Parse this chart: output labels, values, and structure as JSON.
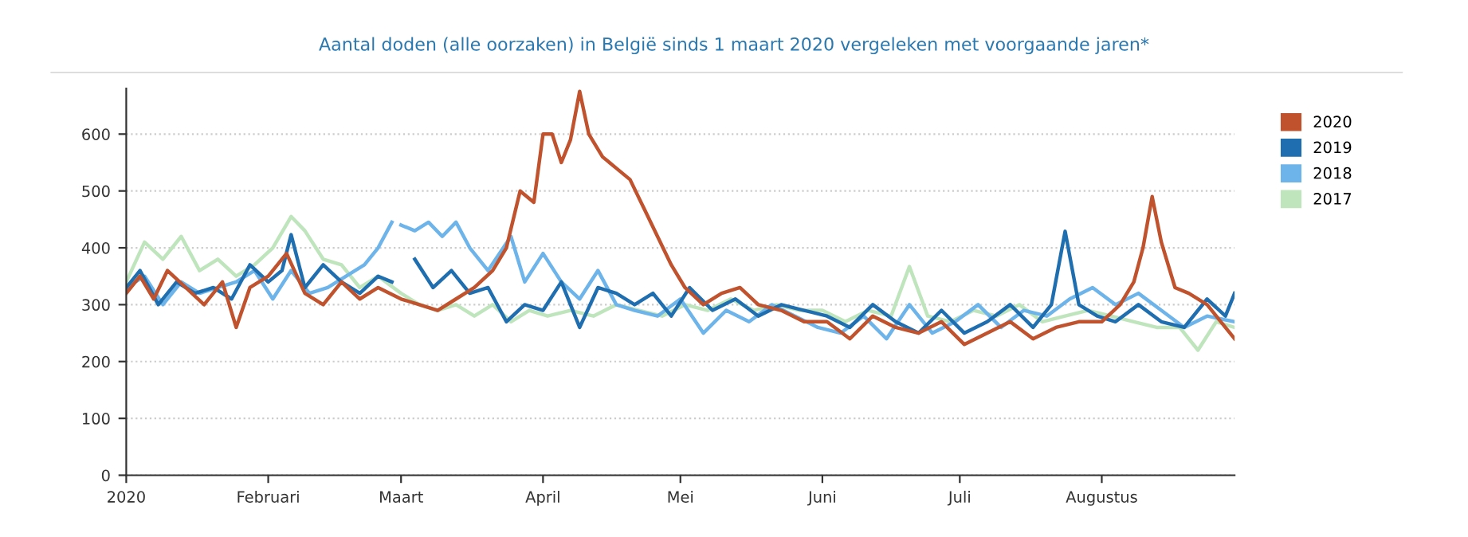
{
  "chart_data": {
    "type": "line",
    "title": "Aantal doden (alle oorzaken) in België sinds 1 maart 2020 vergeleken met voorgaande jaren*",
    "xlim": [
      "2020-01-01",
      "2020-08-30"
    ],
    "xticks": [
      {
        "value": "2020-01-01",
        "label": "2020"
      },
      {
        "value": "2020-02-01",
        "label": "Februari"
      },
      {
        "value": "2020-03-01",
        "label": "Maart"
      },
      {
        "value": "2020-04-01",
        "label": "April"
      },
      {
        "value": "2020-05-01",
        "label": "Mei"
      },
      {
        "value": "2020-06-01",
        "label": "Juni"
      },
      {
        "value": "2020-07-01",
        "label": "Juli"
      },
      {
        "value": "2020-08-01",
        "label": "Augustus"
      }
    ],
    "ylim": [
      0,
      680
    ],
    "yticks": [
      0,
      100,
      200,
      300,
      400,
      500,
      600
    ],
    "grid": "y",
    "legend": "right",
    "line_style": "solid",
    "marker": "none",
    "series": [
      {
        "name": "2020",
        "color": "#c0522d",
        "x": [
          "2020-01-01",
          "2020-01-04",
          "2020-01-07",
          "2020-01-10",
          "2020-01-14",
          "2020-01-18",
          "2020-01-22",
          "2020-01-25",
          "2020-01-28",
          "2020-02-01",
          "2020-02-05",
          "2020-02-09",
          "2020-02-13",
          "2020-02-17",
          "2020-02-21",
          "2020-02-25",
          "2020-03-01",
          "2020-03-05",
          "2020-03-09",
          "2020-03-13",
          "2020-03-17",
          "2020-03-21",
          "2020-03-24",
          "2020-03-27",
          "2020-03-30",
          "2020-04-01",
          "2020-04-03",
          "2020-04-05",
          "2020-04-07",
          "2020-04-09",
          "2020-04-11",
          "2020-04-14",
          "2020-04-17",
          "2020-04-20",
          "2020-04-23",
          "2020-04-26",
          "2020-04-29",
          "2020-05-02",
          "2020-05-06",
          "2020-05-10",
          "2020-05-14",
          "2020-05-18",
          "2020-05-23",
          "2020-05-28",
          "2020-06-02",
          "2020-06-07",
          "2020-06-12",
          "2020-06-17",
          "2020-06-22",
          "2020-06-27",
          "2020-07-02",
          "2020-07-07",
          "2020-07-12",
          "2020-07-17",
          "2020-07-22",
          "2020-07-27",
          "2020-08-01",
          "2020-08-05",
          "2020-08-08",
          "2020-08-10",
          "2020-08-12",
          "2020-08-14",
          "2020-08-17",
          "2020-08-20",
          "2020-08-24",
          "2020-08-27",
          "2020-08-30"
        ],
        "values": [
          320,
          350,
          310,
          360,
          330,
          300,
          340,
          260,
          330,
          350,
          390,
          320,
          300,
          340,
          310,
          330,
          310,
          300,
          290,
          310,
          330,
          360,
          400,
          500,
          480,
          600,
          600,
          550,
          590,
          675,
          600,
          560,
          540,
          520,
          470,
          420,
          370,
          330,
          300,
          320,
          330,
          300,
          290,
          270,
          270,
          240,
          280,
          260,
          250,
          270,
          230,
          250,
          270,
          240,
          260,
          270,
          270,
          300,
          340,
          400,
          490,
          410,
          330,
          320,
          300,
          270,
          240
        ]
      },
      {
        "name": "2019",
        "color": "#1f6fb0",
        "x": [
          "2020-01-01",
          "2020-01-04",
          "2020-01-08",
          "2020-01-12",
          "2020-01-16",
          "2020-01-20",
          "2020-01-24",
          "2020-01-28",
          "2020-02-01",
          "2020-02-04",
          "2020-02-06",
          "2020-02-09",
          "2020-02-13",
          "2020-02-17",
          "2020-02-21",
          "2020-02-25",
          "2020-02-28",
          "2020-03-01",
          "2020-03-04",
          "2020-03-08",
          "2020-03-12",
          "2020-03-16",
          "2020-03-20",
          "2020-03-24",
          "2020-03-28",
          "2020-04-01",
          "2020-04-05",
          "2020-04-09",
          "2020-04-13",
          "2020-04-17",
          "2020-04-21",
          "2020-04-25",
          "2020-04-29",
          "2020-05-03",
          "2020-05-08",
          "2020-05-13",
          "2020-05-18",
          "2020-05-23",
          "2020-05-28",
          "2020-06-02",
          "2020-06-07",
          "2020-06-12",
          "2020-06-17",
          "2020-06-22",
          "2020-06-27",
          "2020-07-02",
          "2020-07-07",
          "2020-07-12",
          "2020-07-17",
          "2020-07-21",
          "2020-07-24",
          "2020-07-27",
          "2020-07-31",
          "2020-08-04",
          "2020-08-09",
          "2020-08-14",
          "2020-08-19",
          "2020-08-24",
          "2020-08-28",
          "2020-08-30"
        ],
        "values": [
          330,
          360,
          300,
          340,
          320,
          330,
          310,
          370,
          340,
          360,
          423,
          330,
          370,
          340,
          320,
          350,
          340,
          null,
          380,
          330,
          360,
          320,
          330,
          270,
          300,
          290,
          340,
          260,
          330,
          320,
          300,
          320,
          280,
          330,
          290,
          310,
          280,
          300,
          290,
          280,
          260,
          300,
          270,
          250,
          290,
          250,
          270,
          300,
          260,
          300,
          429,
          300,
          280,
          270,
          300,
          270,
          260,
          310,
          280,
          320
        ]
      },
      {
        "name": "2018",
        "color": "#6cb4ea",
        "x": [
          "2020-01-01",
          "2020-01-05",
          "2020-01-09",
          "2020-01-13",
          "2020-01-17",
          "2020-01-21",
          "2020-01-25",
          "2020-01-29",
          "2020-02-02",
          "2020-02-06",
          "2020-02-10",
          "2020-02-14",
          "2020-02-18",
          "2020-02-22",
          "2020-02-25",
          "2020-02-28",
          "2020-02-29",
          "2020-03-01",
          "2020-03-04",
          "2020-03-07",
          "2020-03-10",
          "2020-03-13",
          "2020-03-16",
          "2020-03-20",
          "2020-03-25",
          "2020-03-28",
          "2020-04-01",
          "2020-04-05",
          "2020-04-09",
          "2020-04-13",
          "2020-04-17",
          "2020-04-21",
          "2020-04-26",
          "2020-05-01",
          "2020-05-06",
          "2020-05-11",
          "2020-05-16",
          "2020-05-21",
          "2020-05-26",
          "2020-05-31",
          "2020-06-05",
          "2020-06-10",
          "2020-06-15",
          "2020-06-20",
          "2020-06-25",
          "2020-06-30",
          "2020-07-05",
          "2020-07-10",
          "2020-07-15",
          "2020-07-20",
          "2020-07-25",
          "2020-07-30",
          "2020-08-04",
          "2020-08-09",
          "2020-08-14",
          "2020-08-19",
          "2020-08-24",
          "2020-08-30"
        ],
        "values": [
          330,
          350,
          300,
          340,
          320,
          330,
          340,
          360,
          310,
          360,
          320,
          330,
          350,
          370,
          400,
          445,
          null,
          440,
          430,
          445,
          420,
          445,
          400,
          360,
          420,
          340,
          390,
          340,
          310,
          360,
          300,
          290,
          280,
          310,
          250,
          290,
          270,
          300,
          280,
          260,
          250,
          280,
          240,
          300,
          250,
          270,
          300,
          260,
          290,
          280,
          310,
          330,
          300,
          320,
          290,
          260,
          280,
          270
        ]
      },
      {
        "name": "2017",
        "color": "#bfe5bd",
        "x": [
          "2020-01-01",
          "2020-01-05",
          "2020-01-09",
          "2020-01-13",
          "2020-01-17",
          "2020-01-21",
          "2020-01-25",
          "2020-01-29",
          "2020-02-02",
          "2020-02-06",
          "2020-02-09",
          "2020-02-13",
          "2020-02-17",
          "2020-02-21",
          "2020-02-25",
          "2020-03-01",
          "2020-03-05",
          "2020-03-09",
          "2020-03-13",
          "2020-03-17",
          "2020-03-21",
          "2020-03-25",
          "2020-03-29",
          "2020-04-02",
          "2020-04-07",
          "2020-04-12",
          "2020-04-17",
          "2020-04-22",
          "2020-04-27",
          "2020-05-02",
          "2020-05-07",
          "2020-05-12",
          "2020-05-17",
          "2020-05-22",
          "2020-05-27",
          "2020-06-01",
          "2020-06-06",
          "2020-06-11",
          "2020-06-16",
          "2020-06-20",
          "2020-06-24",
          "2020-06-29",
          "2020-07-04",
          "2020-07-09",
          "2020-07-14",
          "2020-07-19",
          "2020-07-24",
          "2020-07-29",
          "2020-08-03",
          "2020-08-08",
          "2020-08-13",
          "2020-08-18",
          "2020-08-22",
          "2020-08-26",
          "2020-08-30"
        ],
        "values": [
          340,
          410,
          380,
          420,
          360,
          380,
          350,
          370,
          400,
          455,
          430,
          380,
          370,
          330,
          350,
          320,
          300,
          290,
          300,
          280,
          300,
          270,
          290,
          280,
          290,
          280,
          300,
          290,
          280,
          300,
          290,
          310,
          290,
          300,
          290,
          290,
          270,
          290,
          280,
          367,
          280,
          270,
          290,
          280,
          300,
          270,
          280,
          290,
          280,
          270,
          260,
          260,
          220,
          270,
          260
        ]
      }
    ]
  }
}
